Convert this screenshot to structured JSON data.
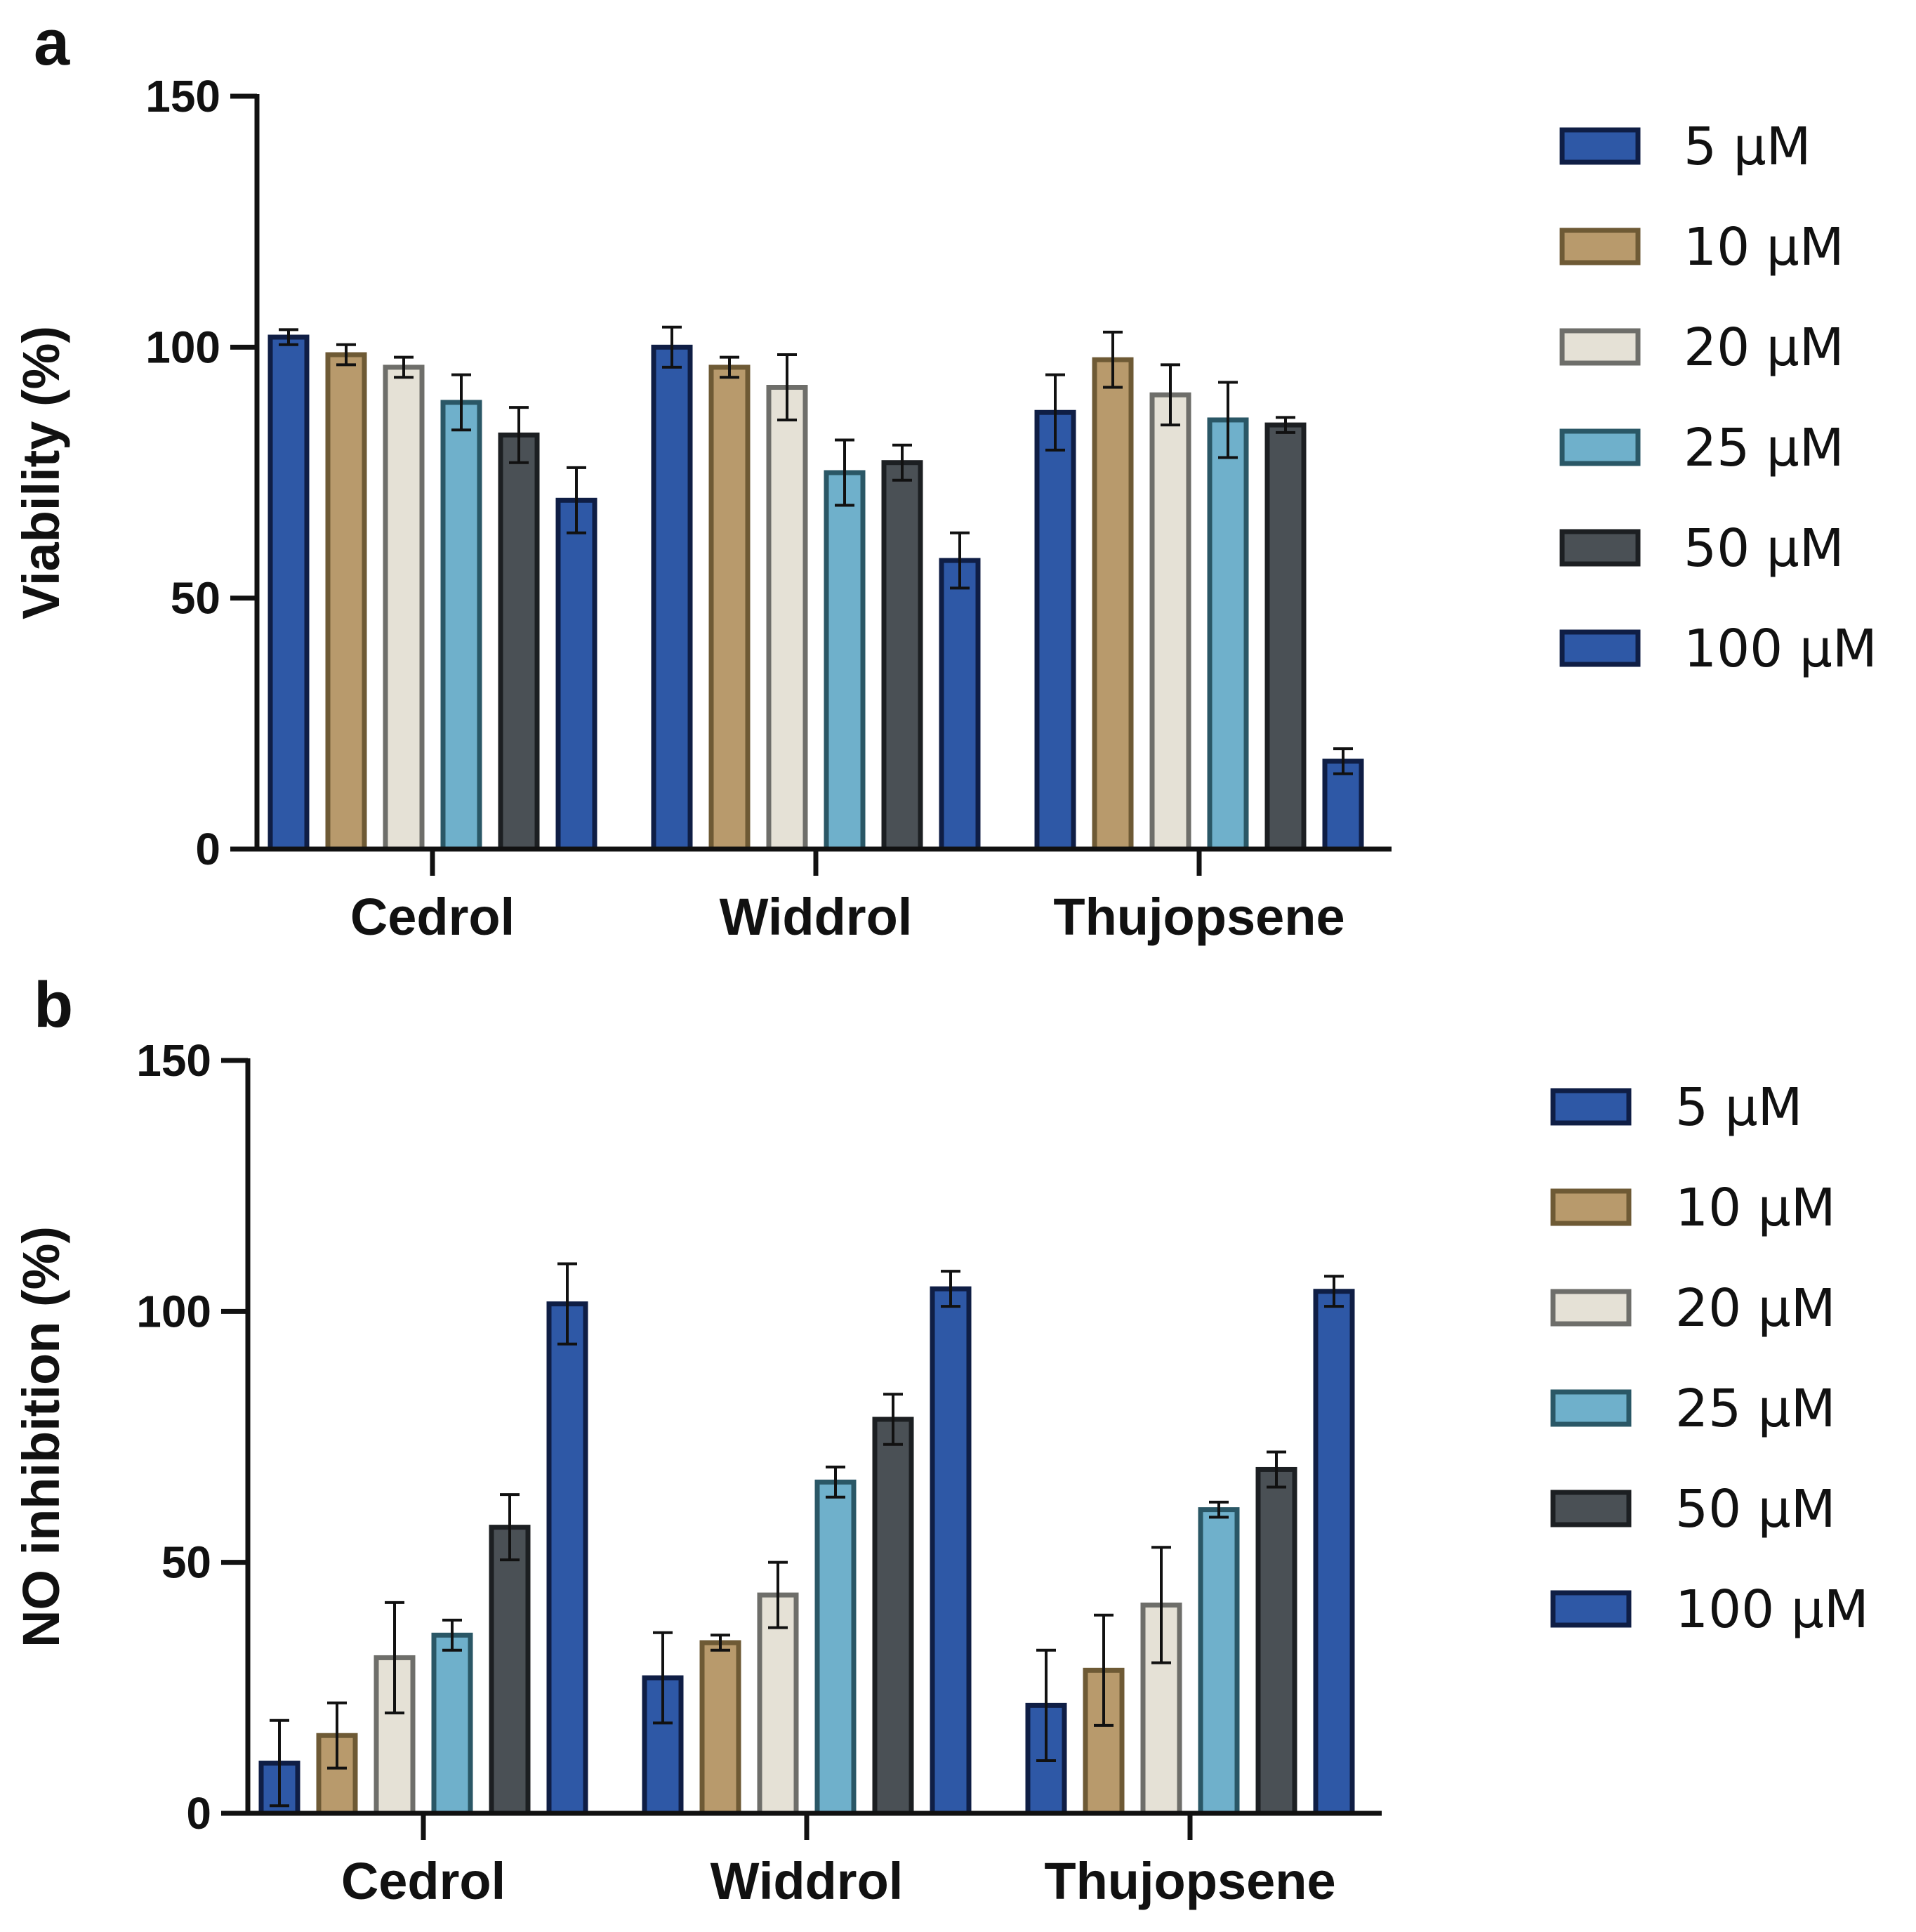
{
  "chart_data": [
    {
      "type": "bar",
      "panel": "a",
      "title": "",
      "xlabel": "",
      "ylabel": "Viability (%)",
      "ylim": [
        0,
        150
      ],
      "yticks": [
        "0",
        "50",
        "100",
        "150"
      ],
      "grid": false,
      "legend_position": "right",
      "categories": [
        "Cedrol",
        "Widdrol",
        "Thujopsene"
      ],
      "series": [
        {
          "name": "5 μM",
          "fill": "#2e58a6",
          "stroke": "#0f1e45",
          "values": [
            102,
            100,
            87
          ],
          "errors": [
            1.5,
            4,
            7.5
          ]
        },
        {
          "name": "10 μM",
          "fill": "#b89a6c",
          "stroke": "#6e5a35",
          "values": [
            98.5,
            96,
            97.5
          ],
          "errors": [
            2,
            2,
            5.5
          ]
        },
        {
          "name": "20 μM",
          "fill": "#e5e1d6",
          "stroke": "#6e6e6a",
          "values": [
            96,
            92,
            90.5
          ],
          "errors": [
            2,
            6.5,
            6
          ]
        },
        {
          "name": "25 μM",
          "fill": "#6fb0cb",
          "stroke": "#2a5766",
          "values": [
            89,
            75,
            85.5
          ],
          "errors": [
            5.5,
            6.5,
            7.5
          ]
        },
        {
          "name": "50 μM",
          "fill": "#4a5055",
          "stroke": "#1c1f22",
          "values": [
            82.5,
            77,
            84.5
          ],
          "errors": [
            5.5,
            3.5,
            1.5
          ]
        },
        {
          "name": "100 μM",
          "fill": "#2e58a6",
          "stroke": "#0f1e45",
          "values": [
            69.5,
            57.5,
            17.5
          ],
          "errors": [
            6.5,
            5.5,
            2.5
          ]
        }
      ]
    },
    {
      "type": "bar",
      "panel": "b",
      "title": "",
      "xlabel": "",
      "ylabel": "NO inhibition (%)",
      "ylim": [
        0,
        150
      ],
      "yticks": [
        "0",
        "50",
        "100",
        "150"
      ],
      "grid": false,
      "legend_position": "right",
      "categories": [
        "Cedrol",
        "Widdrol",
        "Thujopsene"
      ],
      "series": [
        {
          "name": "5 μM",
          "fill": "#2e58a6",
          "stroke": "#0f1e45",
          "values": [
            10,
            27,
            21.5
          ],
          "errors": [
            8.5,
            9,
            11
          ]
        },
        {
          "name": "10 μM",
          "fill": "#b89a6c",
          "stroke": "#6e5a35",
          "values": [
            15.5,
            34,
            28.5
          ],
          "errors": [
            6.5,
            1.5,
            11
          ]
        },
        {
          "name": "20 μM",
          "fill": "#e5e1d6",
          "stroke": "#6e6e6a",
          "values": [
            31,
            43.5,
            41.5
          ],
          "errors": [
            11,
            6.5,
            11.5
          ]
        },
        {
          "name": "25 μM",
          "fill": "#6fb0cb",
          "stroke": "#2a5766",
          "values": [
            35.5,
            66,
            60.5
          ],
          "errors": [
            3,
            3,
            1.5
          ]
        },
        {
          "name": "50 μM",
          "fill": "#4a5055",
          "stroke": "#1c1f22",
          "values": [
            57,
            78.5,
            68.5
          ],
          "errors": [
            6.5,
            5,
            3.5
          ]
        },
        {
          "name": "100 μM",
          "fill": "#2e58a6",
          "stroke": "#0f1e45",
          "values": [
            101.5,
            104.5,
            104
          ],
          "errors": [
            8,
            3.5,
            3
          ]
        }
      ]
    }
  ]
}
